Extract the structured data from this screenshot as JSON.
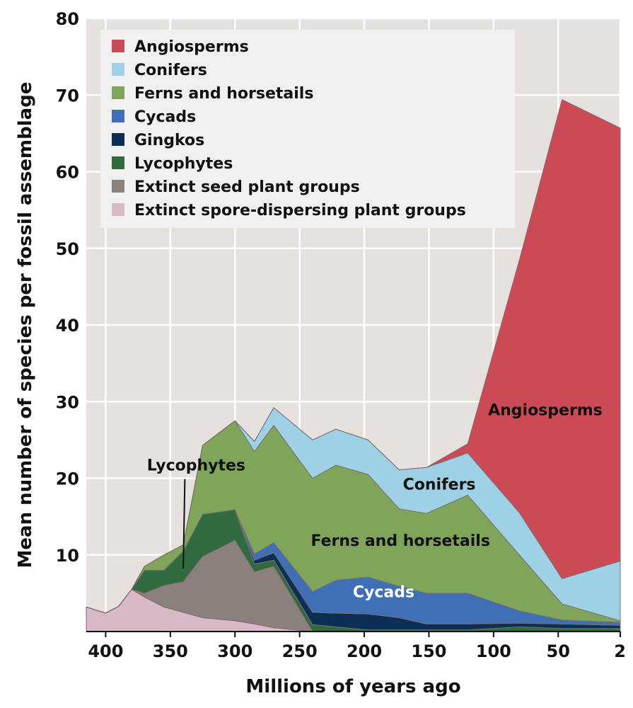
{
  "chart_data": {
    "type": "area",
    "stacked": true,
    "xlabel": "Millions of years ago",
    "ylabel": "Mean number of species per fossil assemblage",
    "xlim": [
      415,
      2
    ],
    "ylim": [
      0,
      80
    ],
    "x_ticks": [
      400,
      350,
      300,
      250,
      200,
      150,
      100,
      50,
      2
    ],
    "y_ticks": [
      10,
      20,
      30,
      40,
      50,
      60,
      70,
      80
    ],
    "grid": true,
    "legend_position": "top-left",
    "colors": {
      "background": "#e6e1df",
      "grid": "#ffffff",
      "series_edge": "#7d6e70"
    },
    "x": [
      415,
      400,
      390,
      380,
      370,
      355,
      340,
      325,
      300,
      285,
      270,
      240,
      222,
      197,
      173,
      152,
      120,
      80,
      47,
      2
    ],
    "series": [
      {
        "name": "Extinct spore-dispersing plant groups",
        "color": "#d9b9c9",
        "values": [
          3.2,
          2.4,
          3.3,
          5.5,
          4.5,
          3.2,
          2.5,
          1.8,
          1.4,
          1.0,
          0.5,
          0,
          0,
          0,
          0,
          0,
          0,
          0,
          0,
          0
        ]
      },
      {
        "name": "Extinct seed plant groups",
        "color": "#8c807c",
        "values": [
          0,
          0,
          0,
          0,
          0.5,
          2.8,
          4.0,
          8.0,
          10.5,
          6.8,
          8.0,
          0,
          0,
          0,
          0,
          0,
          0,
          0,
          0,
          0
        ]
      },
      {
        "name": "Lycophytes",
        "color": "#2f6b3c",
        "values": [
          0,
          0,
          0,
          0,
          3.0,
          2.0,
          4.0,
          5.5,
          4.0,
          1.0,
          0.8,
          0.9,
          0.6,
          0.2,
          0.2,
          0.2,
          0.2,
          0.6,
          0.4,
          0.4
        ]
      },
      {
        "name": "Gingkos",
        "color": "#0c2f55",
        "values": [
          0,
          0,
          0,
          0,
          0,
          0,
          0,
          0,
          0,
          0.5,
          1.0,
          1.6,
          1.8,
          2.1,
          1.6,
          0.8,
          0.8,
          0.5,
          0.6,
          0.4
        ]
      },
      {
        "name": "Cycads",
        "color": "#3f6fb5",
        "values": [
          0,
          0,
          0,
          0,
          0,
          0,
          0,
          0,
          0,
          0.8,
          1.3,
          2.7,
          4.3,
          4.8,
          4.1,
          4.0,
          4.0,
          1.6,
          0.5,
          0.4
        ]
      },
      {
        "name": "Ferns and horsetails",
        "color": "#7fa55a",
        "values": [
          0,
          0,
          0,
          0,
          0.5,
          2.0,
          0.8,
          9.0,
          11.6,
          13.4,
          15.3,
          14.8,
          15.0,
          13.4,
          10.1,
          10.4,
          12.8,
          7.3,
          2.1,
          0.2
        ]
      },
      {
        "name": "Conifers",
        "color": "#9ed0e6",
        "values": [
          0,
          0,
          0,
          0,
          0,
          0,
          0,
          0,
          0,
          1.3,
          2.3,
          5.0,
          4.7,
          4.5,
          5.1,
          6.0,
          5.5,
          5.5,
          3.3,
          7.8
        ]
      },
      {
        "name": "Angiosperms",
        "color": "#cc4a56",
        "values": [
          0,
          0,
          0,
          0,
          0,
          0,
          0,
          0,
          0,
          0,
          0,
          0,
          0,
          0,
          0,
          0,
          1.2,
          33.0,
          62.5,
          56.5
        ]
      }
    ],
    "area_labels": [
      {
        "text": "Angiosperms",
        "x": 60,
        "y": 28.2,
        "color": "#111111"
      },
      {
        "text": "Conifers",
        "x": 142,
        "y": 18.5,
        "color": "#111111"
      },
      {
        "text": "Ferns and horsetails",
        "x": 172,
        "y": 11.2,
        "color": "#111111"
      },
      {
        "text": "Cycads",
        "x": 185,
        "y": 4.5,
        "color": "#ffffff"
      },
      {
        "text": "Lycophytes",
        "x": 330,
        "y": 21.0,
        "color": "#111111",
        "pointer_to": {
          "x": 340,
          "y": 8.2
        }
      }
    ]
  }
}
